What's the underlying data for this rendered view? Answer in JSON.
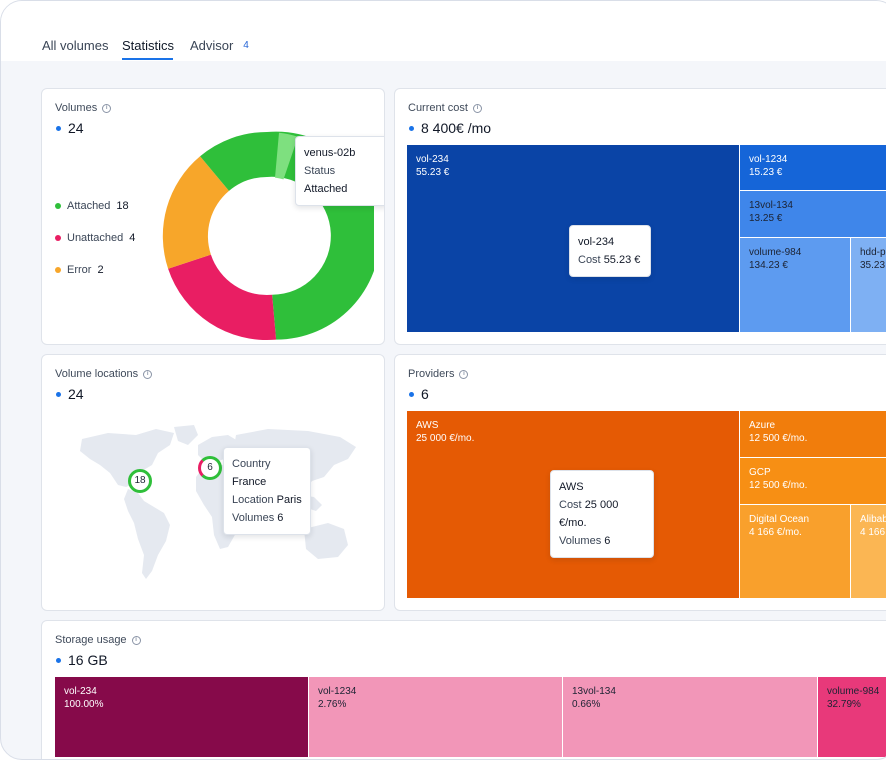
{
  "tabs": [
    {
      "label": "All volumes"
    },
    {
      "label": "Statistics"
    },
    {
      "label": "Advisor",
      "badge": "4"
    }
  ],
  "volumes_card": {
    "title": "Volumes",
    "total": "24",
    "legend": [
      {
        "label": "Attached",
        "count": "18",
        "color": "#2fbf3a"
      },
      {
        "label": "Unattached",
        "count": "4",
        "color": "#e91e63"
      },
      {
        "label": "Error",
        "count": "2",
        "color": "#f7a62a"
      }
    ],
    "tooltip": {
      "name": "venus-02b",
      "status_label": "Status",
      "status_value": "Attached"
    }
  },
  "cost_card": {
    "title": "Current cost",
    "total": "8 400€ /mo",
    "cells": [
      {
        "name": "vol-234",
        "value": "55.23 €"
      },
      {
        "name": "vol-1234",
        "value": "15.23 €"
      },
      {
        "name": "13vol-134",
        "value": "13.25 €"
      },
      {
        "name": "volume-984",
        "value": "134.23 €"
      },
      {
        "name": "hdd-p",
        "value": "35.23"
      }
    ],
    "tooltip": {
      "name": "vol-234",
      "label": "Cost",
      "value": "55.23 €"
    }
  },
  "locations_card": {
    "title": "Volume locations",
    "total": "24",
    "markers": [
      {
        "count": "18"
      },
      {
        "count": "6"
      }
    ],
    "tooltip": {
      "country_label": "Country",
      "country": "France",
      "location_label": "Location",
      "location": "Paris",
      "volumes_label": "Volumes",
      "volumes": "6"
    }
  },
  "providers_card": {
    "title": "Providers",
    "total": "6",
    "cells": [
      {
        "name": "AWS",
        "value": "25 000 €/mo."
      },
      {
        "name": "Azure",
        "value": "12 500 €/mo."
      },
      {
        "name": "GCP",
        "value": "12 500 €/mo."
      },
      {
        "name": "Digital Ocean",
        "value": "4 166 €/mo."
      },
      {
        "name": "Alibab",
        "value": "4 166"
      }
    ],
    "tooltip": {
      "name": "AWS",
      "cost_label": "Cost",
      "cost": "25 000 €/mo.",
      "volumes_label": "Volumes",
      "volumes": "6"
    }
  },
  "storage_card": {
    "title": "Storage usage",
    "total": "16 GB",
    "cells": [
      {
        "name": "vol-234",
        "value": "100.00%"
      },
      {
        "name": "vol-1234",
        "value": "2.76%"
      },
      {
        "name": "13vol-134",
        "value": "0.66%"
      },
      {
        "name": "volume-984",
        "value": "32.79%"
      }
    ]
  },
  "colors": {
    "accent": "#1a73e8",
    "attached": "#2fbf3a",
    "unattached": "#e91e63",
    "error": "#f7a62a"
  }
}
